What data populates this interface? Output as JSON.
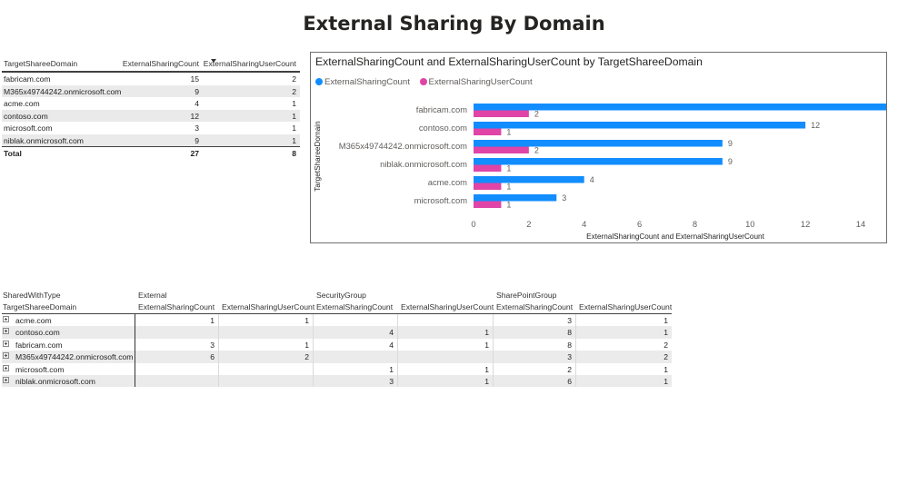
{
  "page": {
    "title": "External Sharing By Domain"
  },
  "table1": {
    "headers": [
      "TargetShareeDomain",
      "ExternalSharingCount",
      "ExternalSharingUserCount"
    ],
    "rows": [
      [
        "fabricam.com",
        "15",
        "2"
      ],
      [
        "M365x49744242.onmicrosoft.com",
        "9",
        "2"
      ],
      [
        "acme.com",
        "4",
        "1"
      ],
      [
        "contoso.com",
        "12",
        "1"
      ],
      [
        "microsoft.com",
        "3",
        "1"
      ],
      [
        "niblak.onmicrosoft.com",
        "9",
        "1"
      ]
    ],
    "total": [
      "Total",
      "27",
      "8"
    ],
    "sort_column": "ExternalSharingUserCount",
    "sort_direction": "descending"
  },
  "chart": {
    "title": "ExternalSharingCount and ExternalSharingUserCount by TargetShareeDomain",
    "legend": [
      {
        "name": "ExternalSharingCount",
        "color": "#118DFF"
      },
      {
        "name": "ExternalSharingUserCount",
        "color": "#E044A7"
      }
    ]
  },
  "chart_data": {
    "type": "bar",
    "orientation": "horizontal",
    "title": "ExternalSharingCount and ExternalSharingUserCount by TargetShareeDomain",
    "xlabel": "ExternalSharingCount and ExternalSharingUserCount",
    "ylabel": "TargetShareeDomain",
    "categories": [
      "fabricam.com",
      "contoso.com",
      "M365x49744242.onmicrosoft.com",
      "niblak.onmicrosoft.com",
      "acme.com",
      "microsoft.com"
    ],
    "series": [
      {
        "name": "ExternalSharingCount",
        "values": [
          15,
          12,
          9,
          9,
          4,
          3
        ],
        "color": "#118DFF"
      },
      {
        "name": "ExternalSharingUserCount",
        "values": [
          2,
          1,
          2,
          1,
          1,
          1
        ],
        "color": "#E044A7"
      }
    ],
    "xlim": [
      0,
      15
    ],
    "xticks": [
      0,
      2,
      4,
      6,
      8,
      10,
      12,
      14
    ],
    "legend_position": "top-left",
    "grid": false,
    "data_labels": true
  },
  "matrix": {
    "row_header": "SharedWithType",
    "row_field": "TargetShareeDomain",
    "groups": [
      "External",
      "SecurityGroup",
      "SharePointGroup"
    ],
    "measures": [
      "ExternalSharingCount",
      "ExternalSharingUserCount"
    ],
    "rows": [
      {
        "domain": "acme.com",
        "values": [
          "1",
          "1",
          "",
          "",
          "3",
          "1"
        ]
      },
      {
        "domain": "contoso.com",
        "values": [
          "",
          "",
          "4",
          "1",
          "8",
          "1"
        ]
      },
      {
        "domain": "fabricam.com",
        "values": [
          "3",
          "1",
          "4",
          "1",
          "8",
          "2"
        ]
      },
      {
        "domain": "M365x49744242.onmicrosoft.com",
        "values": [
          "6",
          "2",
          "",
          "",
          "3",
          "2"
        ]
      },
      {
        "domain": "microsoft.com",
        "values": [
          "",
          "",
          "1",
          "1",
          "2",
          "1"
        ]
      },
      {
        "domain": "niblak.onmicrosoft.com",
        "values": [
          "",
          "",
          "3",
          "1",
          "6",
          "1"
        ]
      }
    ]
  }
}
